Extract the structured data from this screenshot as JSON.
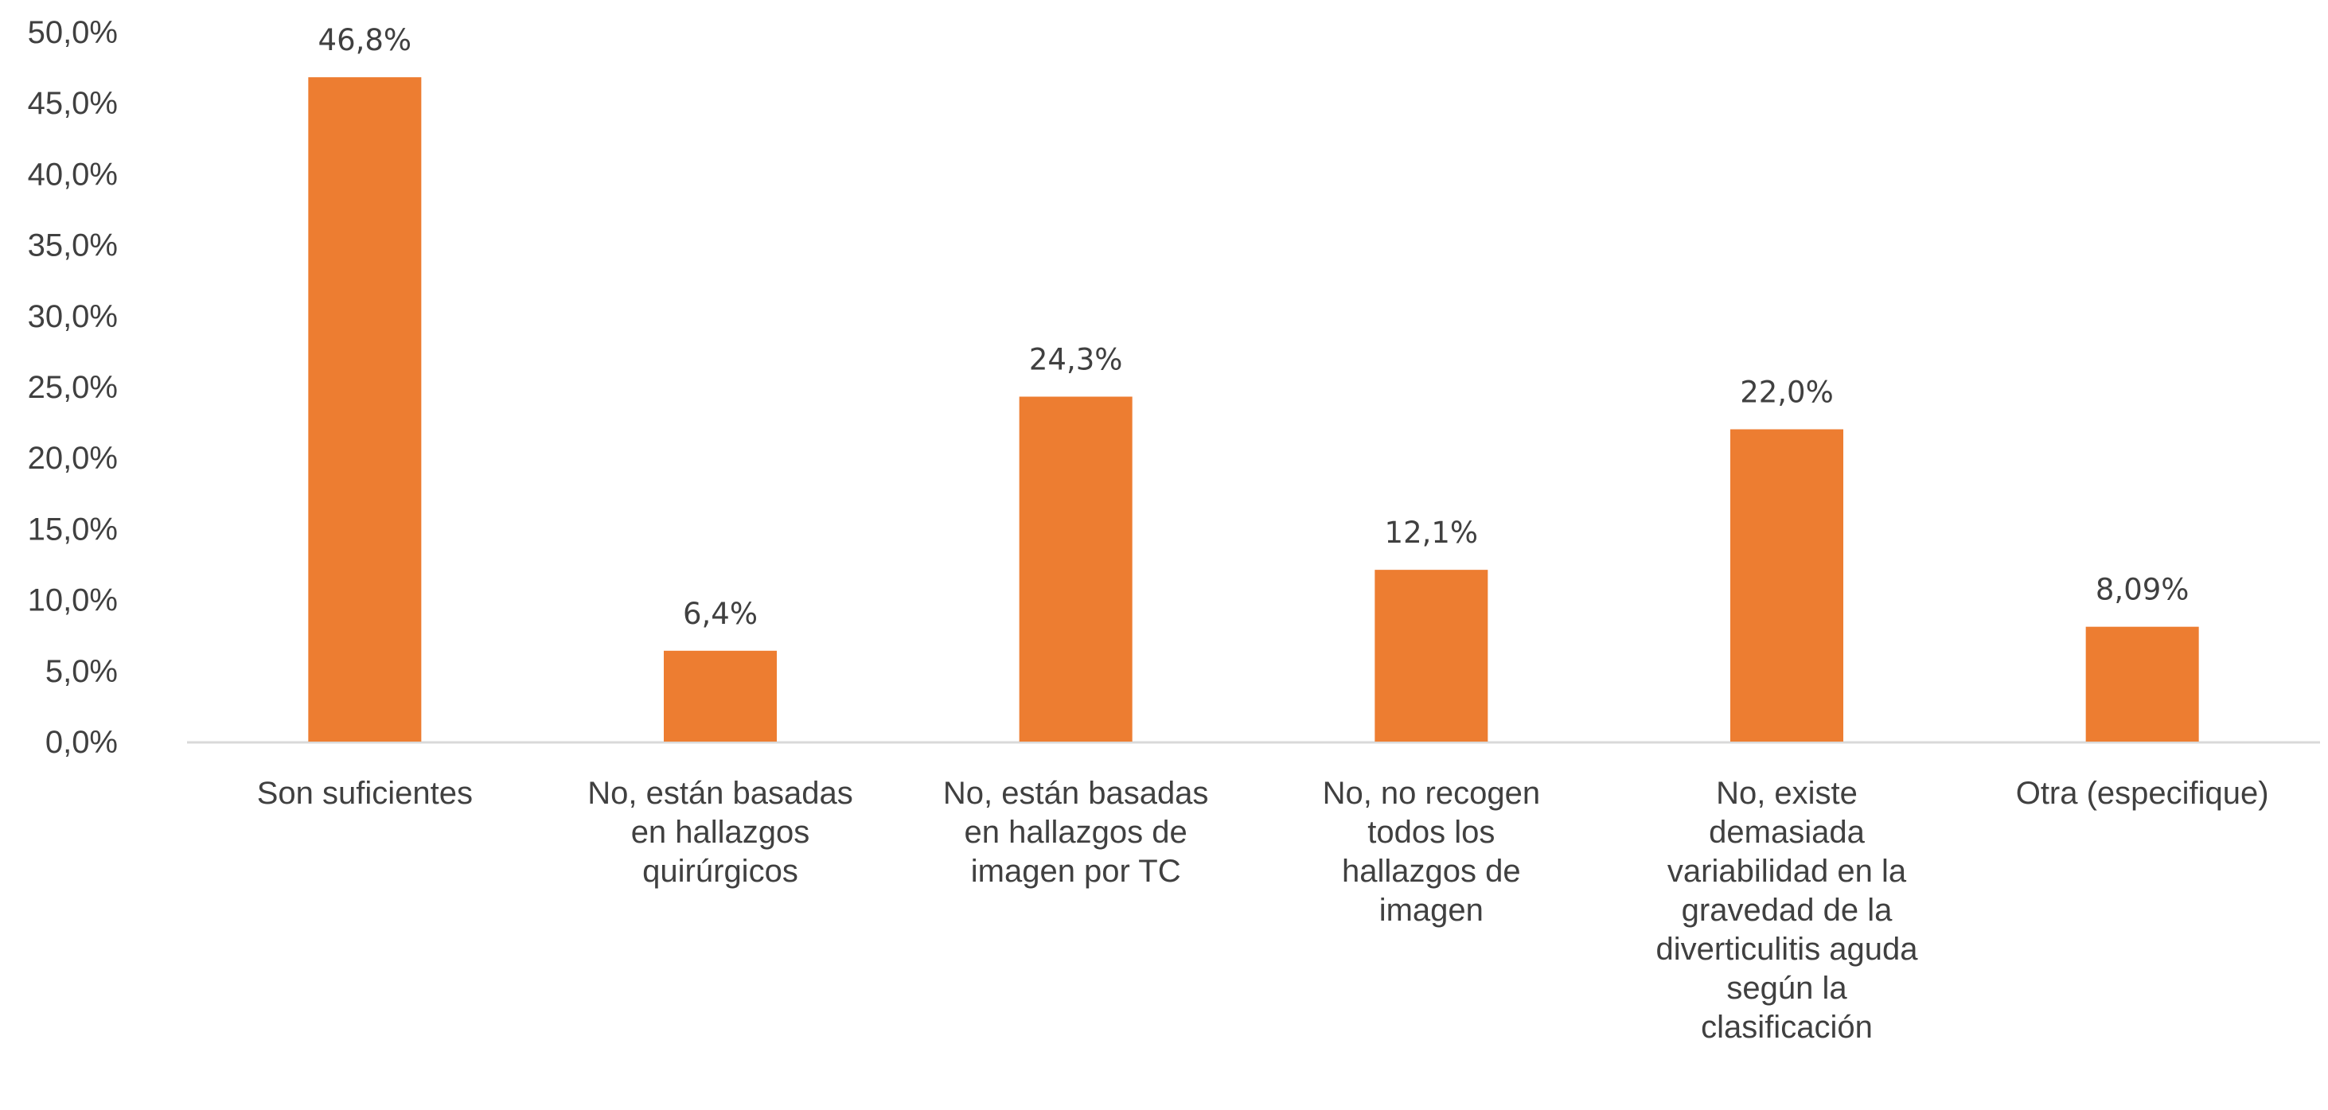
{
  "chart_data": {
    "type": "bar",
    "categories": [
      [
        "Son suficientes"
      ],
      [
        "No, están basadas",
        "en hallazgos",
        "quirúrgicos"
      ],
      [
        "No, están basadas",
        "en hallazgos de",
        "imagen por TC"
      ],
      [
        "No, no recogen",
        "todos los",
        "hallazgos de",
        "imagen"
      ],
      [
        "No, existe",
        "demasiada",
        "variabilidad en la",
        "gravedad de la",
        "diverticulitis aguda",
        "según la",
        "clasificación"
      ],
      [
        "Otra (especifique)"
      ]
    ],
    "values": [
      46.8,
      6.4,
      24.3,
      12.1,
      22.0,
      8.09
    ],
    "data_labels": [
      "46,8%",
      "6,4%",
      "24,3%",
      "12,1%",
      "22,0%",
      "8,09%"
    ],
    "y_ticks": [
      "0,0%",
      "5,0%",
      "10,0%",
      "15,0%",
      "20,0%",
      "25,0%",
      "30,0%",
      "35,0%",
      "40,0%",
      "45,0%",
      "50,0%"
    ],
    "ylim": [
      0,
      50
    ],
    "grid": false,
    "bar_color": "#ED7D31",
    "axis_color": "#D9D9D9",
    "text_color": "#404040"
  }
}
